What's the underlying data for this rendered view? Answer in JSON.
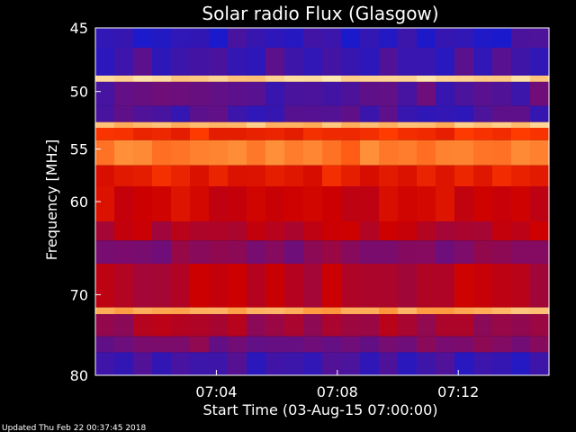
{
  "chart_data": {
    "type": "heatmap",
    "title": "Solar radio Flux (Glasgow)",
    "xlabel": "Start Time (03-Aug-15 07:00:00)",
    "ylabel": "Frequency [MHz]",
    "x_ticks": [
      "07:04",
      "07:08",
      "07:12"
    ],
    "x_tick_minutes": [
      4,
      8,
      12
    ],
    "xlim_minutes": [
      0,
      15
    ],
    "y_ticks": [
      45,
      50,
      55,
      60,
      70,
      80
    ],
    "ylim": [
      45,
      80
    ],
    "y_scale": "log",
    "colormap": [
      "#1a1acc",
      "#7a0c6e",
      "#cc0000",
      "#ff3b00",
      "#ff9a40",
      "#ffe9b0"
    ],
    "background": "#000000",
    "bands": [
      {
        "range": [
          45,
          46.5
        ],
        "level": 0.05
      },
      {
        "range": [
          46.5,
          48.7
        ],
        "level": 0.08
      },
      {
        "range": [
          48.7,
          49.2
        ],
        "level": 0.95
      },
      {
        "range": [
          49.2,
          51.2
        ],
        "level": 0.12
      },
      {
        "range": [
          51.2,
          52.6
        ],
        "level": 0.1
      },
      {
        "range": [
          52.6,
          53.1
        ],
        "level": 0.9
      },
      {
        "range": [
          53.1,
          54.2
        ],
        "level": 0.55
      },
      {
        "range": [
          54.2,
          56.5
        ],
        "level": 0.72
      },
      {
        "range": [
          56.5,
          58.5
        ],
        "level": 0.5
      },
      {
        "range": [
          58.5,
          62
        ],
        "level": 0.42
      },
      {
        "range": [
          62,
          64
        ],
        "level": 0.35
      },
      {
        "range": [
          64,
          66.5
        ],
        "level": 0.22
      },
      {
        "range": [
          66.5,
          71.5
        ],
        "level": 0.35
      },
      {
        "range": [
          71.5,
          72.3
        ],
        "level": 0.85
      },
      {
        "range": [
          72.3,
          75
        ],
        "level": 0.3
      },
      {
        "range": [
          75,
          77
        ],
        "level": 0.2
      },
      {
        "range": [
          77,
          80
        ],
        "level": 0.08
      }
    ]
  },
  "footer": "Updated Thu Feb 22 00:37:45 2018"
}
